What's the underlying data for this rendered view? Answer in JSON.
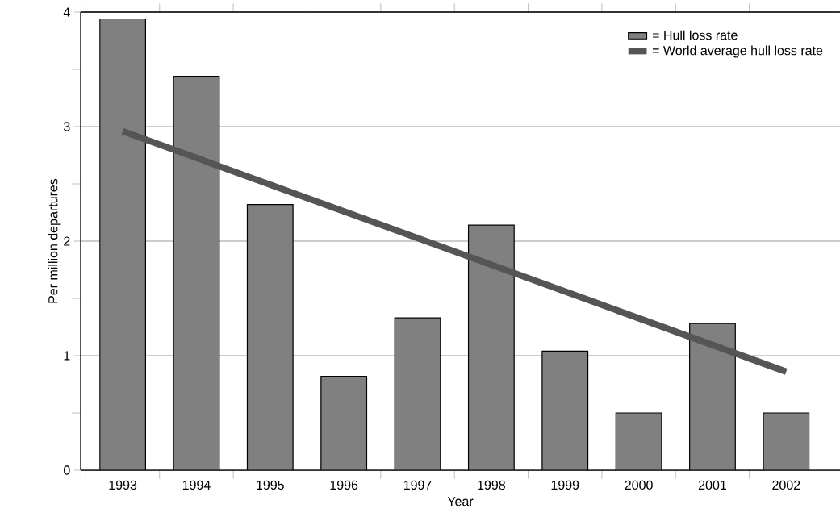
{
  "chart_data": {
    "type": "bar",
    "xlabel": "Year",
    "ylabel": "Per million departures",
    "categories": [
      "1993",
      "1994",
      "1995",
      "1996",
      "1997",
      "1998",
      "1999",
      "2000",
      "2001",
      "2002"
    ],
    "series": [
      {
        "name": "= Hull loss rate",
        "color": "#808080",
        "values": [
          3.94,
          3.44,
          2.32,
          0.82,
          1.33,
          2.14,
          1.04,
          0.5,
          1.28,
          0.5
        ]
      },
      {
        "name": "= World average hull loss rate",
        "type": "line",
        "color": "#555555",
        "values": [
          2.96,
          null,
          null,
          null,
          null,
          null,
          null,
          null,
          null,
          0.86
        ]
      }
    ],
    "ylim": [
      0,
      4
    ],
    "yticks": [
      0,
      {
        "value": 0.5,
        "label": null
      },
      1,
      {
        "value": 1.5,
        "label": null
      },
      2,
      {
        "value": 2.5,
        "label": null
      },
      3,
      {
        "value": 3.5,
        "label": null
      },
      4
    ],
    "grid": "y",
    "legend": "top right"
  }
}
